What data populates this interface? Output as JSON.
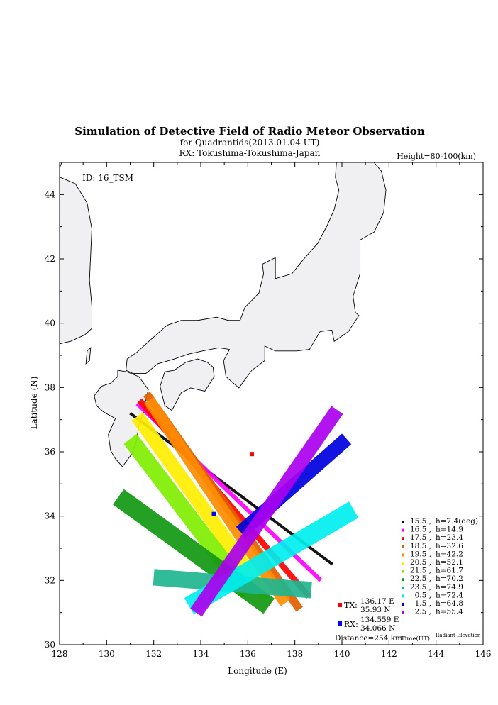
{
  "chart_data": {
    "type": "map",
    "title": "Simulation of Detective Field of Radio Meteor Observation",
    "subtitle": "for Quadrantids(2013.01.04 UT)",
    "subtitle2": "RX: Tokushima-Tokushima-Japan",
    "height_note": "Height=80-100(km)",
    "id_label": "ID: 16_TSM",
    "xlabel": "Longitude (E)",
    "ylabel": "Latitude (N)",
    "xlim": [
      128,
      146
    ],
    "ylim": [
      30,
      45
    ],
    "xticks": [
      "128",
      "130",
      "132",
      "134",
      "136",
      "138",
      "140",
      "142",
      "144",
      "146"
    ],
    "yticks": [
      "30",
      "32",
      "34",
      "36",
      "38",
      "40",
      "42",
      "44"
    ],
    "tx": {
      "label": "TX:",
      "lon_text": "136.17 E",
      "lat_text": "35.93 N",
      "lon": 136.17,
      "lat": 35.93,
      "color": "#ff0000"
    },
    "rx": {
      "label": "RX:",
      "lon_text": "134.559 E",
      "lat_text": "34.066 N",
      "lon": 134.559,
      "lat": 34.066,
      "color": "#0000ff"
    },
    "distance": "Distance=254 km",
    "time_label": "Time(UT)",
    "radiant_label": "Radiant Elevation",
    "series": [
      {
        "time": "15.5",
        "elev": "h=7.4(deg)",
        "color": "#000000",
        "p1": [
          131.0,
          37.2
        ],
        "p2": [
          139.6,
          32.5
        ],
        "width": 0.12
      },
      {
        "time": "16.5",
        "elev": "h=14.9",
        "color": "#ff00ff",
        "p1": [
          131.3,
          37.5
        ],
        "p2": [
          139.1,
          32.0
        ],
        "width": 0.18
      },
      {
        "time": "17.5",
        "elev": "h=23.4",
        "color": "#ff0000",
        "p1": [
          131.4,
          37.6
        ],
        "p2": [
          138.6,
          31.5
        ],
        "width": 0.25
      },
      {
        "time": "18.5",
        "elev": "h=32.6",
        "color": "#e06000",
        "p1": [
          131.7,
          37.8
        ],
        "p2": [
          138.2,
          31.1
        ],
        "width": 0.35
      },
      {
        "time": "19.5",
        "elev": "h=42.2",
        "color": "#ff8c00",
        "p1": [
          131.8,
          37.6
        ],
        "p2": [
          137.6,
          31.3
        ],
        "width": 0.5
      },
      {
        "time": "20.5",
        "elev": "h=52.1",
        "color": "#ffee00",
        "p1": [
          131.3,
          37.1
        ],
        "p2": [
          136.8,
          31.5
        ],
        "width": 0.6
      },
      {
        "time": "21.5",
        "elev": "h=61.7",
        "color": "#80ee00",
        "p1": [
          131.0,
          36.4
        ],
        "p2": [
          136.0,
          31.6
        ],
        "width": 0.7
      },
      {
        "time": "22.5",
        "elev": "h=70.2",
        "color": "#119911",
        "p1": [
          130.5,
          34.6
        ],
        "p2": [
          136.9,
          31.2
        ],
        "width": 0.8
      },
      {
        "time": "23.5",
        "elev": "h=74.9",
        "color": "#20b590",
        "p1": [
          132.0,
          32.1
        ],
        "p2": [
          138.7,
          31.7
        ],
        "width": 0.7
      },
      {
        "time": "0.5",
        "elev": "h=72.4",
        "color": "#00eeee",
        "p1": [
          133.5,
          31.2
        ],
        "p2": [
          140.5,
          34.2
        ],
        "width": 0.8
      },
      {
        "time": "1.5",
        "elev": "h=64.8",
        "color": "#0000dd",
        "p1": [
          135.7,
          33.5
        ],
        "p2": [
          140.2,
          36.4
        ],
        "width": 0.6
      },
      {
        "time": "2.5",
        "elev": "h=55.4",
        "color": "#aa00ee",
        "p1": [
          133.8,
          31.0
        ],
        "p2": [
          139.8,
          37.3
        ],
        "width": 0.6
      }
    ]
  }
}
